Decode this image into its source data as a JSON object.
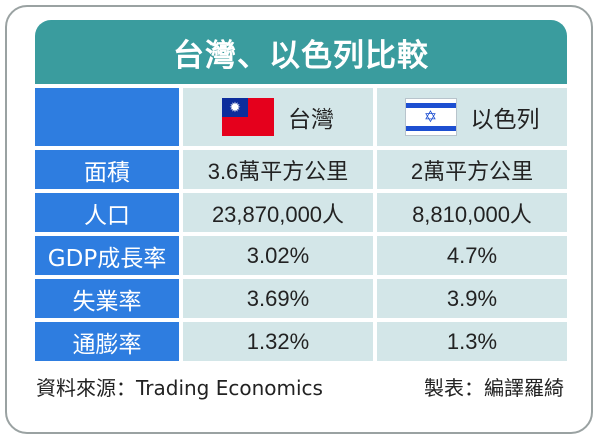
{
  "title": "台灣、以色列比較",
  "columns": [
    {
      "name": "台灣",
      "flag_icon": "taiwan-flag-icon",
      "flag_colors": {
        "field": "#e5001c",
        "canton": "#0c2d9c"
      }
    },
    {
      "name": "以色列",
      "flag_icon": "israel-flag-icon",
      "flag_colors": {
        "field": "#ffffff",
        "stripe": "#1d4fd1"
      }
    }
  ],
  "rows": [
    {
      "label": "面積",
      "values": [
        "3.6萬平方公里",
        "2萬平方公里"
      ]
    },
    {
      "label": "人口",
      "values": [
        "23,870,000人",
        "8,810,000人"
      ]
    },
    {
      "label": "GDP成長率",
      "values": [
        "3.02%",
        "4.7%"
      ]
    },
    {
      "label": "失業率",
      "values": [
        "3.69%",
        "3.9%"
      ]
    },
    {
      "label": "通膨率",
      "values": [
        "1.32%",
        "1.3%"
      ]
    }
  ],
  "footer": {
    "source": "資料來源：Trading Economics",
    "credit": "製表：編譯羅綺"
  },
  "colors": {
    "title_bar": "#3a9c9e",
    "label_cells": "#2e7de0",
    "value_cells": "#d3e6e8"
  }
}
